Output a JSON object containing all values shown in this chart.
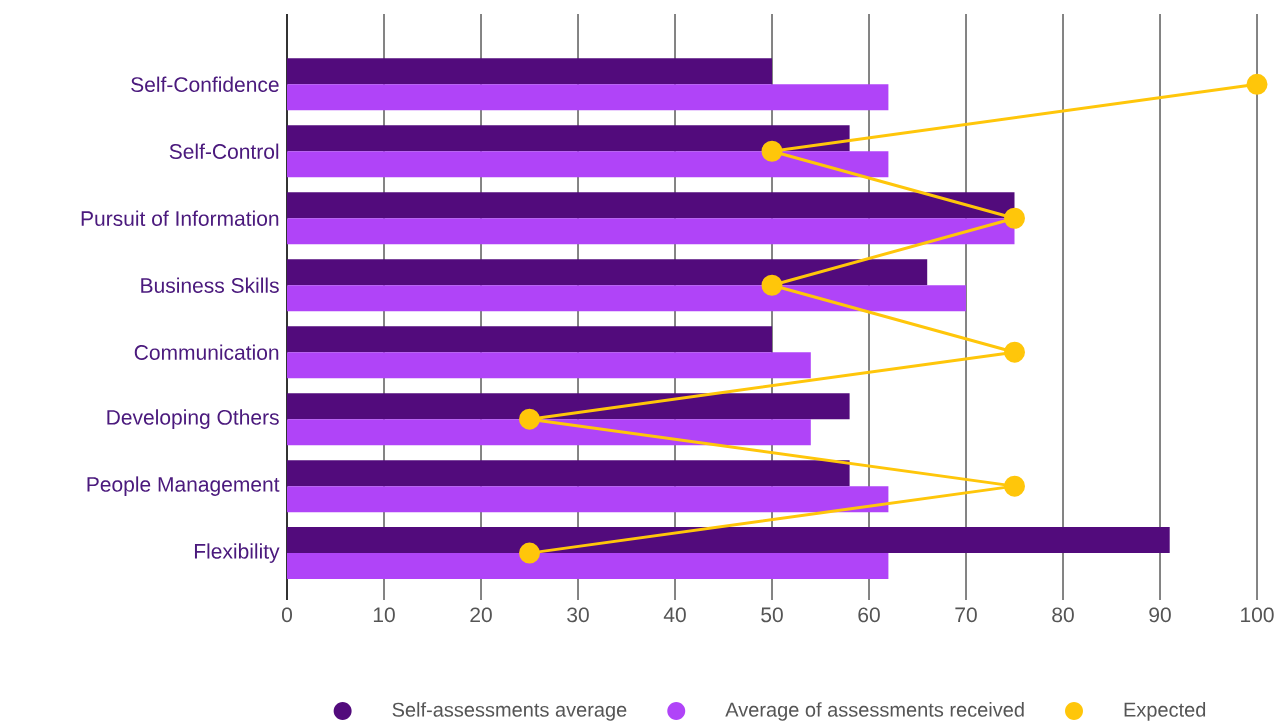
{
  "chart_data": {
    "type": "bar",
    "orientation": "horizontal",
    "categories": [
      "Self-Confidence",
      "Self-Control",
      "Pursuit of Information",
      "Business Skills",
      "Communication",
      "Developing Others",
      "People Management",
      "Flexibility"
    ],
    "series": [
      {
        "name": "Self-assessments average",
        "color": "#520b7c",
        "values": [
          50,
          58,
          75,
          66,
          50,
          58,
          58,
          91
        ]
      },
      {
        "name": "Average of assessments received",
        "color": "#b044f8",
        "values": [
          62,
          62,
          75,
          70,
          54,
          54,
          62,
          62
        ]
      },
      {
        "name": "Expected",
        "color": "#ffc60a",
        "type": "line",
        "marker": "circle",
        "values": [
          100,
          50,
          75,
          50,
          75,
          25,
          75,
          25
        ]
      }
    ],
    "xlim": [
      0,
      100
    ],
    "xticks": [
      0,
      10,
      20,
      30,
      40,
      50,
      60,
      70,
      80,
      90,
      100
    ],
    "grid": "x",
    "legend": "bottom"
  }
}
